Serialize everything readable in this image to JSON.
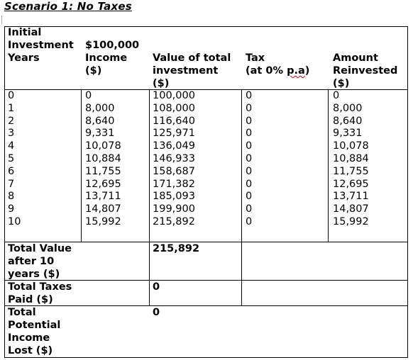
{
  "title": "Scenario 1: No Taxes",
  "header": {
    "initial_label_1": "Initial",
    "initial_label_2": "Investment",
    "initial_value": "$100,000",
    "years": "Years",
    "income_1": "Income",
    "income_2": "($)",
    "value_1": "Value of total",
    "value_2": "investment",
    "value_3": "($)",
    "tax_1": "Tax",
    "tax_2a": "(at 0% ",
    "tax_2b": "p.a",
    "tax_2c": ")",
    "reinv_1": "Amount",
    "reinv_2": "Reinvested",
    "reinv_3": "($)"
  },
  "rows": [
    {
      "year": "0",
      "income": "0",
      "value": "100,000",
      "tax": "0",
      "reinvested": "0"
    },
    {
      "year": "1",
      "income": "8,000",
      "value": "108,000",
      "tax": "0",
      "reinvested": "8,000"
    },
    {
      "year": "2",
      "income": "8,640",
      "value": "116,640",
      "tax": "0",
      "reinvested": "8,640"
    },
    {
      "year": "3",
      "income": "9,331",
      "value": "125,971",
      "tax": "0",
      "reinvested": "9,331"
    },
    {
      "year": "4",
      "income": "10,078",
      "value": "136,049",
      "tax": "0",
      "reinvested": "10,078"
    },
    {
      "year": "5",
      "income": "10,884",
      "value": "146,933",
      "tax": "0",
      "reinvested": "10,884"
    },
    {
      "year": "6",
      "income": "11,755",
      "value": "158,687",
      "tax": "0",
      "reinvested": "11,755"
    },
    {
      "year": "7",
      "income": "12,695",
      "value": "171,382",
      "tax": "0",
      "reinvested": "12,695"
    },
    {
      "year": "8",
      "income": "13,711",
      "value": "185,093",
      "tax": "0",
      "reinvested": "13,711"
    },
    {
      "year": "9",
      "income": "14,807",
      "value": "199,900",
      "tax": "0",
      "reinvested": "14,807"
    },
    {
      "year": "10",
      "income": "15,992",
      "value": "215,892",
      "tax": "0",
      "reinvested": "15,992"
    }
  ],
  "summary": {
    "total_value_1": "Total Value",
    "total_value_2": "after 10",
    "total_value_3": "years ($)",
    "total_value": "215,892",
    "total_taxes_1": "Total Taxes",
    "total_taxes_2": "Paid ($)",
    "total_taxes": "0",
    "lost_1": "Total",
    "lost_2": "Potential",
    "lost_3": "Income",
    "lost_4": "Lost ($)",
    "lost_value": "0"
  }
}
